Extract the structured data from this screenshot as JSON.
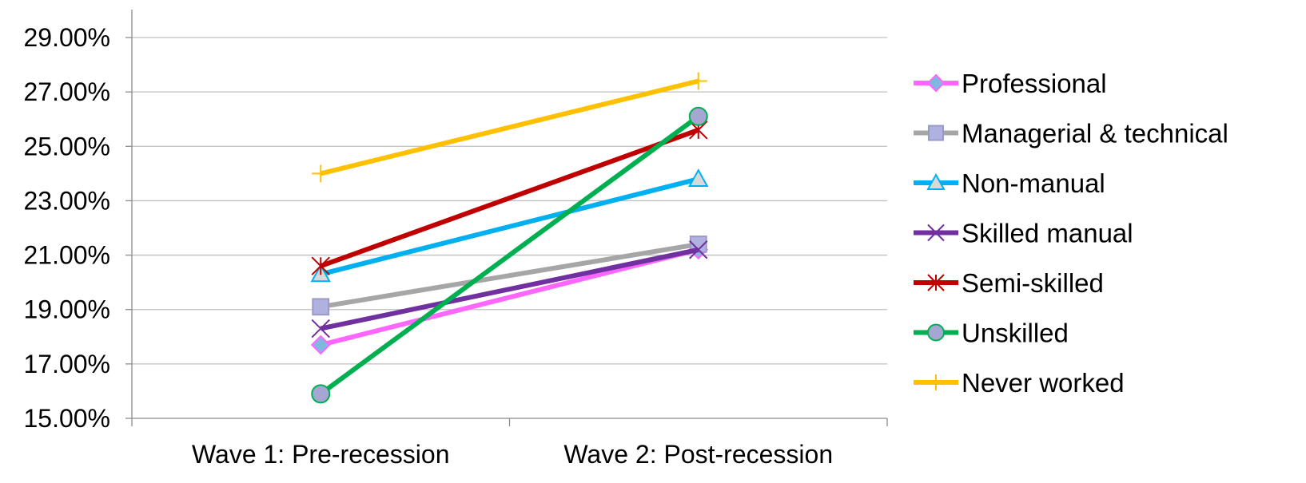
{
  "chart_data": {
    "type": "line",
    "title": "",
    "xlabel": "",
    "ylabel": "",
    "categories": [
      "Wave 1: Pre-recession",
      "Wave 2: Post-recession"
    ],
    "ylim": [
      15,
      29
    ],
    "y_ticks": [
      15,
      17,
      19,
      21,
      23,
      25,
      27,
      29
    ],
    "y_tick_labels": [
      "15.00%",
      "17.00%",
      "19.00%",
      "21.00%",
      "23.00%",
      "25.00%",
      "27.00%",
      "29.00%"
    ],
    "grid": "horizontal",
    "legend_position": "right",
    "series": [
      {
        "name": "Professional",
        "values": [
          17.7,
          21.2
        ],
        "color": "#FF66FF",
        "marker": "diamond",
        "marker_fill": "#7FB7E0",
        "marker_stroke": "#FF66FF"
      },
      {
        "name": "Managerial & technical",
        "values": [
          19.1,
          21.4
        ],
        "color": "#A6A6A6",
        "marker": "square",
        "marker_fill": "#B1B1E0",
        "marker_stroke": "#9A9AC8"
      },
      {
        "name": "Non-manual",
        "values": [
          20.3,
          23.8
        ],
        "color": "#00B0F0",
        "marker": "triangle",
        "marker_fill": "#D9D9D9",
        "marker_stroke": "#00B0F0"
      },
      {
        "name": "Skilled manual",
        "values": [
          18.3,
          21.2
        ],
        "color": "#7030A0",
        "marker": "x",
        "marker_fill": "none",
        "marker_stroke": "#7030A0"
      },
      {
        "name": "Semi-skilled",
        "values": [
          20.6,
          25.6
        ],
        "color": "#C00000",
        "marker": "star",
        "marker_fill": "none",
        "marker_stroke": "#C00000"
      },
      {
        "name": "Unskilled",
        "values": [
          15.9,
          26.1
        ],
        "color": "#00B050",
        "marker": "circle",
        "marker_fill": "#A6A6D2",
        "marker_stroke": "#00B050"
      },
      {
        "name": "Never worked",
        "values": [
          24.0,
          27.4
        ],
        "color": "#FFC000",
        "marker": "plus",
        "marker_fill": "none",
        "marker_stroke": "#FFC000"
      }
    ]
  }
}
